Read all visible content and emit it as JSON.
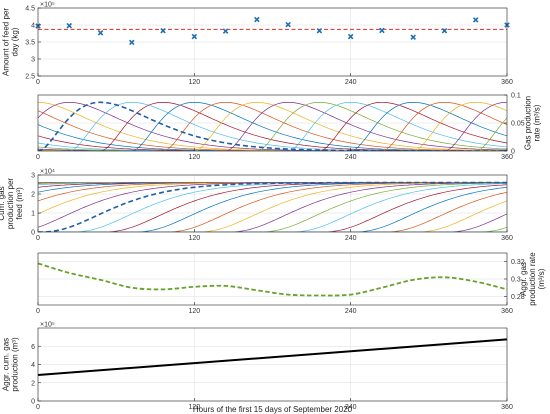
{
  "chart_data": [
    {
      "id": "feed",
      "type": "scatter",
      "ylabel": "Amount of feed per day (kg)",
      "exponent": "×10⁵",
      "x": [
        0,
        24,
        48,
        72,
        96,
        120,
        144,
        168,
        192,
        216,
        240,
        264,
        288,
        312,
        336,
        360
      ],
      "y": [
        3.97,
        3.98,
        3.77,
        3.49,
        3.83,
        3.66,
        3.82,
        4.16,
        4.01,
        3.83,
        3.66,
        3.84,
        3.64,
        3.83,
        4.15,
        4.0
      ],
      "reference_line": 3.87,
      "marker_color": "#1f6fb2",
      "reference_color": "#e4443c",
      "xlim": [
        0,
        360
      ],
      "ylim": [
        2.5,
        4.5
      ],
      "yticks": [
        2.5,
        3,
        3.5,
        4,
        4.5
      ],
      "xticks": [
        0,
        120,
        240,
        360
      ],
      "grid": true
    },
    {
      "id": "rate",
      "type": "line",
      "ylabel": "Gas production rate (m³/s)",
      "xlim": [
        0,
        360
      ],
      "ylim": [
        0,
        0.1
      ],
      "yticks": [
        0,
        0.05,
        0.1
      ],
      "xticks": [
        0,
        120,
        240,
        360
      ],
      "curve_start_hours": [
        -264,
        -240,
        -216,
        -192,
        -168,
        -144,
        -120,
        -96,
        -72,
        -48,
        -24,
        0,
        24,
        48,
        72,
        96,
        120,
        144,
        168,
        192,
        216,
        240,
        264,
        288,
        312,
        336,
        360
      ],
      "curve_peak_value": 0.087,
      "curve_peak_offset_h": 48,
      "highlight_start_hour": 0,
      "grid": true
    },
    {
      "id": "cum",
      "type": "line",
      "ylabel": "Cum. gas production per feed (m³)",
      "exponent": "×10⁴",
      "xlim": [
        0,
        360
      ],
      "ylim": [
        0,
        3
      ],
      "yticks": [
        0,
        1,
        2,
        3
      ],
      "xticks": [
        0,
        120,
        240,
        360
      ],
      "curve_start_hours": [
        -264,
        -240,
        -216,
        -192,
        -168,
        -144,
        -120,
        -96,
        -72,
        -48,
        -24,
        0,
        24,
        48,
        72,
        96,
        120,
        144,
        168,
        192,
        216,
        240,
        264,
        288,
        312,
        336,
        360
      ],
      "plateau": 2.6,
      "highlight_start_hour": 0,
      "grid": true
    },
    {
      "id": "aggr",
      "type": "line",
      "ylabel": "Aggr. gas production rate (m³/s)",
      "x": [
        0,
        24,
        48,
        72,
        96,
        120,
        144,
        168,
        192,
        216,
        240,
        264,
        288,
        312,
        336,
        360
      ],
      "y": [
        0.318,
        0.307,
        0.299,
        0.29,
        0.288,
        0.291,
        0.292,
        0.287,
        0.282,
        0.281,
        0.282,
        0.29,
        0.299,
        0.302,
        0.297,
        0.288
      ],
      "color": "#6aa12b",
      "xlim": [
        0,
        360
      ],
      "ylim": [
        0.27,
        0.33
      ],
      "yticks": [
        0.28,
        0.3,
        0.32
      ],
      "xticks": [
        0,
        120,
        240,
        360
      ],
      "grid": true
    },
    {
      "id": "aggcum",
      "type": "line",
      "ylabel": "Aggr. cum. gas production (m³)",
      "exponent": "×10⁵",
      "x": [
        0,
        360
      ],
      "y": [
        2.85,
        6.75
      ],
      "color": "#000000",
      "xlim": [
        0,
        360
      ],
      "ylim": [
        0,
        8
      ],
      "yticks": [
        0,
        2,
        4,
        6
      ],
      "xticks": [
        0,
        120,
        240,
        360
      ],
      "xlabel": "Hours of the first 15 days of September 2020",
      "grid": true
    }
  ],
  "palette": [
    "#0072BD",
    "#D95319",
    "#EDB120",
    "#7E2F8E",
    "#77AC30",
    "#4DBEEE",
    "#A2142F"
  ]
}
